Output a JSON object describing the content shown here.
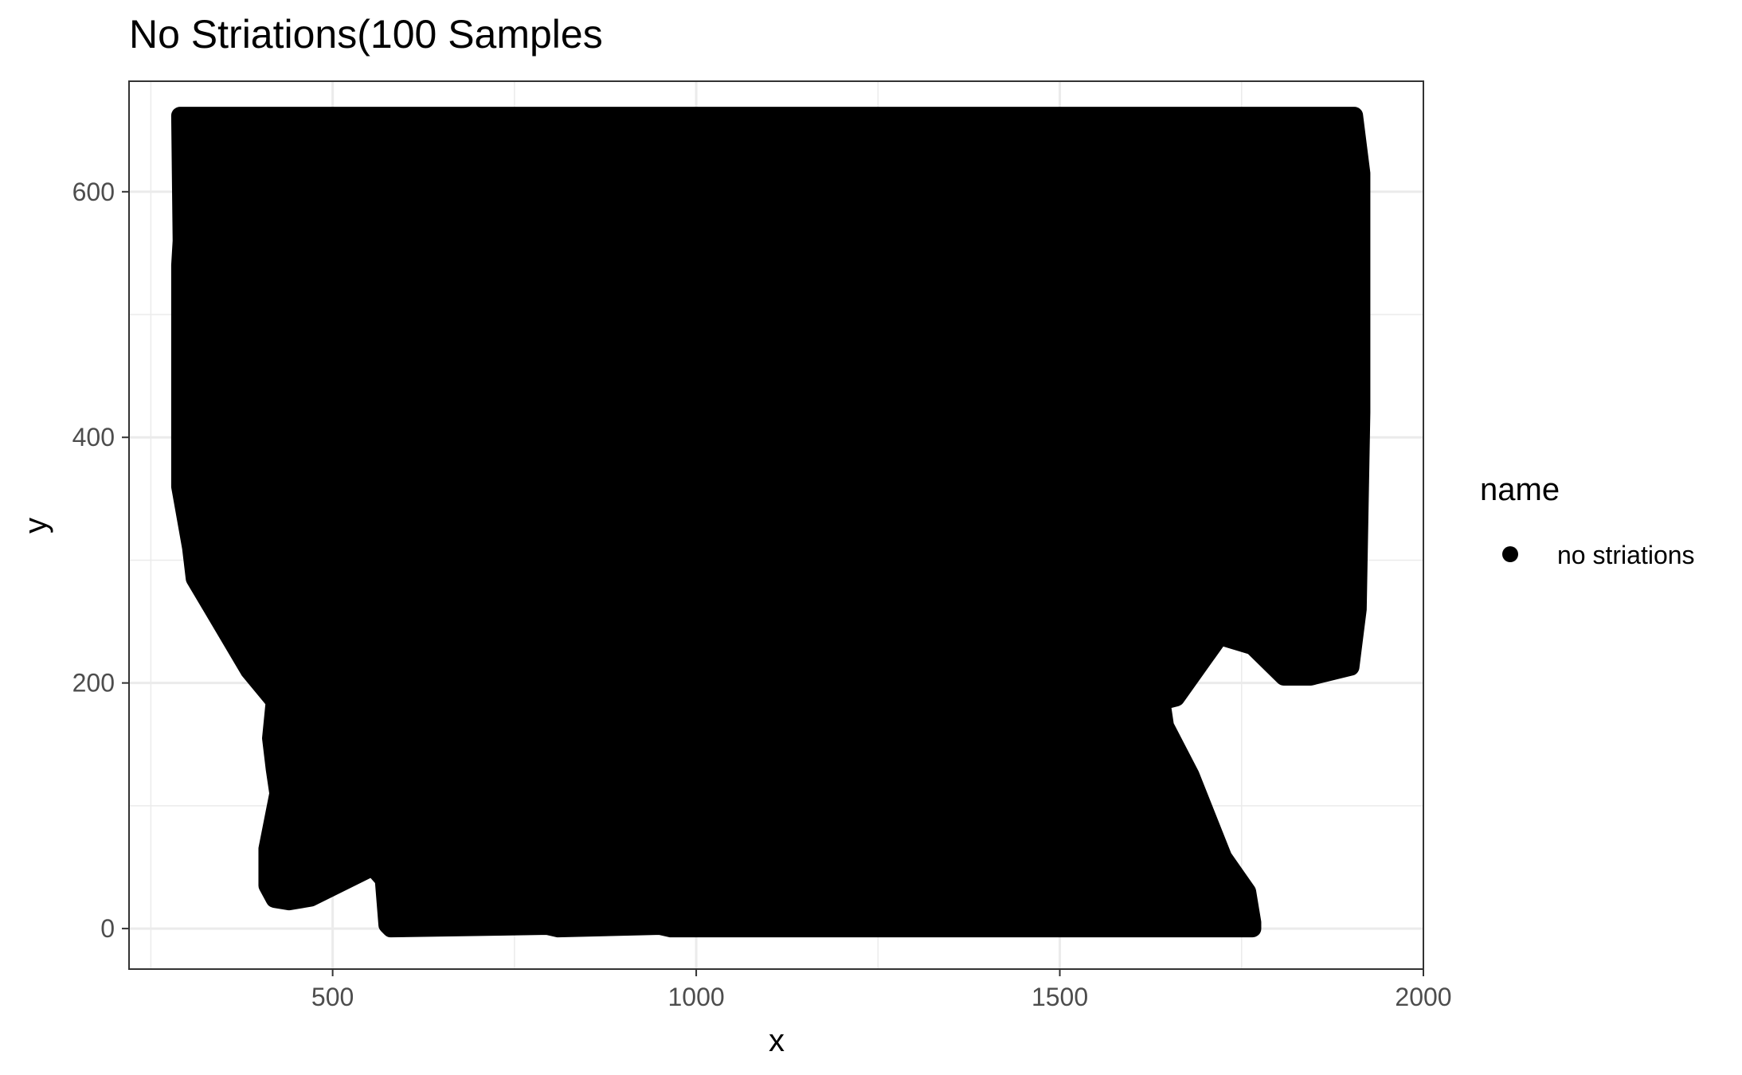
{
  "chart_data": {
    "type": "scatter",
    "title": "No Striations(100 Samples",
    "xlabel": "x",
    "ylabel": "y",
    "xlim": [
      220,
      2000
    ],
    "ylim": [
      -33,
      690
    ],
    "x_ticks": [
      500,
      1000,
      1500,
      2000
    ],
    "x_tick_labels": [
      "500",
      "1000",
      "1500",
      "2000"
    ],
    "y_ticks": [
      0,
      200,
      400,
      600
    ],
    "y_tick_labels": [
      "0",
      "200",
      "400",
      "600"
    ],
    "grid": true,
    "legend": {
      "title": "name",
      "placement": "right",
      "entries": [
        {
          "label": "no striations",
          "color": "#000000",
          "marker": "circle"
        }
      ]
    },
    "series": [
      {
        "name": "no striations",
        "color": "#000000",
        "description": "Dense cloud of overlapping points forming the filled region outlined below",
        "outline_points": [
          [
            290,
            662
          ],
          [
            1905,
            662
          ],
          [
            1915,
            615
          ],
          [
            1915,
            420
          ],
          [
            1910,
            260
          ],
          [
            1900,
            213
          ],
          [
            1845,
            205
          ],
          [
            1808,
            205
          ],
          [
            1765,
            230
          ],
          [
            1720,
            238
          ],
          [
            1660,
            188
          ],
          [
            1640,
            185
          ],
          [
            1645,
            165
          ],
          [
            1680,
            125
          ],
          [
            1725,
            58
          ],
          [
            1758,
            30
          ],
          [
            1765,
            5
          ],
          [
            1765,
            0
          ],
          [
            965,
            0
          ],
          [
            950,
            2
          ],
          [
            810,
            0
          ],
          [
            795,
            2
          ],
          [
            580,
            0
          ],
          [
            575,
            3
          ],
          [
            570,
            40
          ],
          [
            555,
            50
          ],
          [
            470,
            25
          ],
          [
            440,
            22
          ],
          [
            420,
            24
          ],
          [
            410,
            35
          ],
          [
            410,
            65
          ],
          [
            425,
            110
          ],
          [
            420,
            130
          ],
          [
            415,
            155
          ],
          [
            420,
            185
          ],
          [
            385,
            210
          ],
          [
            320,
            275
          ],
          [
            310,
            285
          ],
          [
            305,
            310
          ],
          [
            290,
            360
          ],
          [
            290,
            540
          ],
          [
            292,
            560
          ]
        ]
      }
    ]
  }
}
